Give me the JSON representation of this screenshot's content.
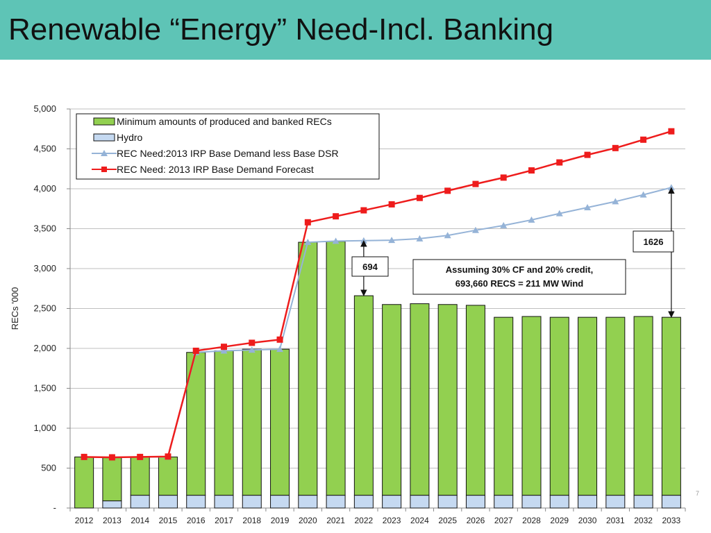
{
  "slide": {
    "title": "Renewable “Energy” Need-Incl. Banking",
    "corner_mark": "7"
  },
  "chart_data": {
    "type": "bar",
    "categories": [
      "2012",
      "2013",
      "2014",
      "2015",
      "2016",
      "2017",
      "2018",
      "2019",
      "2020",
      "2021",
      "2022",
      "2023",
      "2024",
      "2025",
      "2026",
      "2027",
      "2028",
      "2029",
      "2030",
      "2031",
      "2032",
      "2033"
    ],
    "ylabel": "RECs '000",
    "ylim": [
      0,
      5000
    ],
    "yticks": [
      0,
      500,
      1000,
      1500,
      2000,
      2500,
      3000,
      3500,
      4000,
      4500,
      5000
    ],
    "ytick_labels": [
      "-",
      "500",
      "1,000",
      "1,500",
      "2,000",
      "2,500",
      "3,000",
      "3,500",
      "4,000",
      "4,500",
      "5,000"
    ],
    "grid": true,
    "legend_position": "top-left",
    "stacked": true,
    "series": [
      {
        "name": "Minimum amounts of produced and banked RECs",
        "kind": "bar",
        "color": "#92d050",
        "values": [
          640,
          540,
          480,
          480,
          1790,
          1810,
          1830,
          1830,
          3170,
          3180,
          2500,
          2390,
          2400,
          2390,
          2380,
          2230,
          2240,
          2230,
          2230,
          2230,
          2240,
          2230
        ]
      },
      {
        "name": "Hydro",
        "kind": "bar",
        "color": "#c5d9f1",
        "values": [
          0,
          90,
          160,
          160,
          160,
          160,
          160,
          160,
          160,
          160,
          160,
          160,
          160,
          160,
          160,
          160,
          160,
          160,
          160,
          160,
          160,
          160
        ]
      },
      {
        "name": "REC Need:2013 IRP Base Demand less Base DSR",
        "kind": "line",
        "marker": "triangle",
        "color": "#95b3d7",
        "values": [
          640,
          635,
          640,
          640,
          1950,
          1970,
          1980,
          1990,
          3330,
          3345,
          3350,
          3355,
          3375,
          3415,
          3480,
          3540,
          3610,
          3690,
          3765,
          3840,
          3925,
          4015
        ]
      },
      {
        "name": "REC Need: 2013 IRP Base Demand Forecast",
        "kind": "line",
        "marker": "square",
        "color": "#ee1c1c",
        "values": [
          640,
          635,
          640,
          645,
          1970,
          2020,
          2070,
          2110,
          3580,
          3655,
          3730,
          3805,
          3885,
          3975,
          4060,
          4140,
          4230,
          4330,
          4425,
          4510,
          4615,
          4720
        ]
      }
    ],
    "annotations": [
      {
        "text": "694",
        "category": "2022",
        "from": 2660,
        "to": 3350
      },
      {
        "text": "1626",
        "category": "2033",
        "from": 2390,
        "to": 4015
      },
      {
        "text_lines": [
          "Assuming 30% CF and 20% credit,",
          "693,660 RECS = 211 MW Wind"
        ]
      }
    ]
  }
}
